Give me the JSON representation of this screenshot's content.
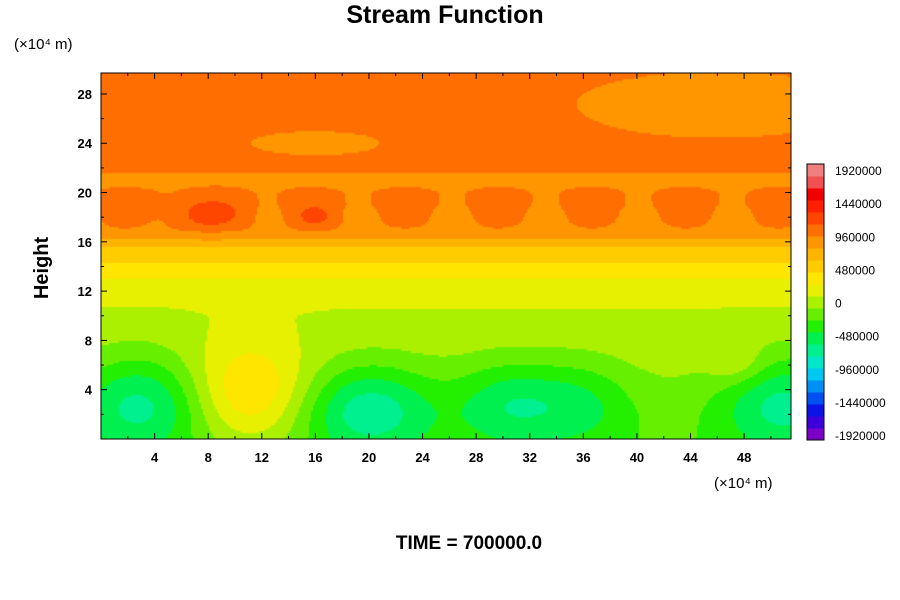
{
  "chart_data": {
    "type": "heatmap",
    "title": "Stream Function",
    "ylabel": "Height",
    "xlabel": "",
    "x_unit": "(×10⁴ m)",
    "y_unit": "(×10⁴ m)",
    "xlim": [
      0,
      51.5
    ],
    "ylim": [
      0,
      29.7
    ],
    "x_ticks": [
      "4",
      "8",
      "12",
      "16",
      "20",
      "24",
      "28",
      "32",
      "36",
      "40",
      "44",
      "48"
    ],
    "x_tick_values": [
      4,
      8,
      12,
      16,
      20,
      24,
      28,
      32,
      36,
      40,
      44,
      48
    ],
    "y_ticks": [
      "4",
      "8",
      "12",
      "16",
      "20",
      "24",
      "28"
    ],
    "y_tick_values": [
      4,
      8,
      12,
      16,
      20,
      24,
      28
    ],
    "colorbar": {
      "min": -1920000,
      "max": 1920000,
      "tick_labels": [
        "1920000",
        "1440000",
        "960000",
        "480000",
        "0",
        "-480000",
        "-960000",
        "-1440000",
        "-1920000"
      ],
      "tick_values": [
        1920000,
        1440000,
        960000,
        480000,
        0,
        -480000,
        -960000,
        -1440000,
        -1920000
      ]
    },
    "field_profile": {
      "note_heights": [
        0,
        2,
        4,
        6,
        8,
        10,
        12,
        13,
        14,
        15,
        15.8,
        16.2,
        17,
        19,
        21,
        23,
        26,
        29.7
      ],
      "base_values": [
        -200000,
        -150000,
        -80000,
        -20000,
        20000,
        60000,
        150000,
        250000,
        380000,
        500000,
        620000,
        760000,
        900000,
        950000,
        900000,
        960000,
        960000,
        950000
      ]
    },
    "features": [
      {
        "kind": "low",
        "x": 3,
        "y": 3,
        "amp": -520000,
        "sx": 3.5,
        "sy": 2.8
      },
      {
        "kind": "high",
        "x": 11,
        "y": 3.5,
        "amp": 520000,
        "sx": 3.2,
        "sy": 3.0
      },
      {
        "kind": "low",
        "x": 20,
        "y": 2.5,
        "amp": -560000,
        "sx": 3.5,
        "sy": 2.6
      },
      {
        "kind": "low",
        "x": 30.5,
        "y": 3,
        "amp": -420000,
        "sx": 3.0,
        "sy": 2.5
      },
      {
        "kind": "low",
        "x": 36,
        "y": 3,
        "amp": -300000,
        "sx": 2.8,
        "sy": 2.5
      },
      {
        "kind": "low",
        "x": 51,
        "y": 3,
        "amp": -520000,
        "sx": 3.5,
        "sy": 2.8
      },
      {
        "kind": "high",
        "x": 47.5,
        "y": 6,
        "amp": 200000,
        "sx": 1.5,
        "sy": 1.2
      },
      {
        "kind": "high",
        "x": 8,
        "y": 18.2,
        "amp": 250000,
        "sx": 1.8,
        "sy": 0.8
      },
      {
        "kind": "high",
        "x": 16,
        "y": 18,
        "amp": 200000,
        "sx": 1.0,
        "sy": 0.6
      },
      {
        "kind": "low",
        "x": 46,
        "y": 27,
        "amp": -180000,
        "sx": 6,
        "sy": 1.5
      },
      {
        "kind": "low",
        "x": 16,
        "y": 24,
        "amp": -150000,
        "sx": 3,
        "sy": 0.6
      }
    ],
    "time_label": "TIME = 700000.0"
  },
  "palette": [
    "#7a00c8",
    "#3c00dc",
    "#0a14e6",
    "#0050f0",
    "#0090f5",
    "#00c8f0",
    "#00e6c8",
    "#00f090",
    "#00f050",
    "#22f000",
    "#66f000",
    "#aaf000",
    "#e6f000",
    "#ffe600",
    "#ffcc00",
    "#ffb400",
    "#ff9600",
    "#ff6e00",
    "#ff4600",
    "#ff2000",
    "#f00000",
    "#f05050",
    "#f08080"
  ]
}
